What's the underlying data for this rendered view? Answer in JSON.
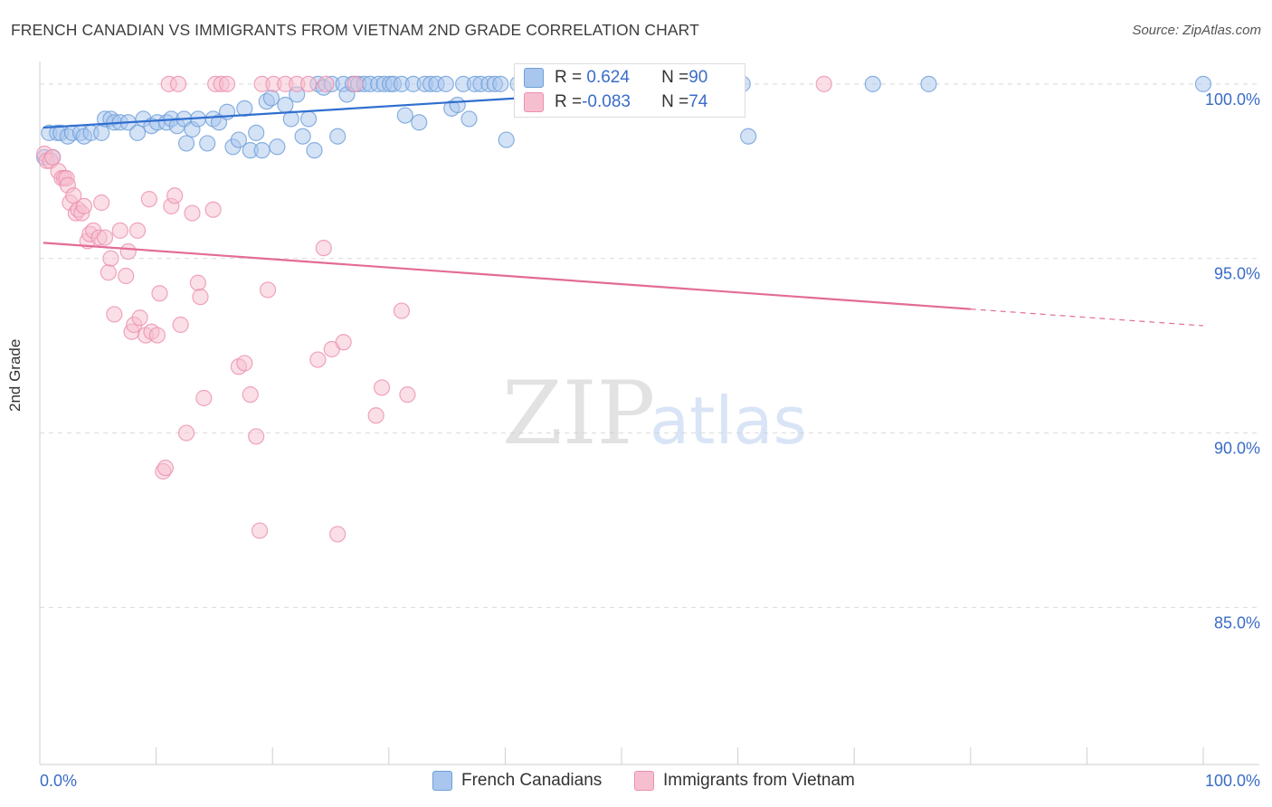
{
  "header": {
    "title": "FRENCH CANADIAN VS IMMIGRANTS FROM VIETNAM 2ND GRADE CORRELATION CHART",
    "source": "Source: ZipAtlas.com"
  },
  "watermark": {
    "zip": "ZIP",
    "atlas": "atlas"
  },
  "colors": {
    "blue_fill": "#a9c6ee",
    "blue_stroke": "#6e9fd8",
    "blue_line": "#2f6fd0",
    "pink_fill": "#f6bfd0",
    "pink_stroke": "#ec8fae",
    "pink_line": "#e36c96",
    "tick_label": "#3a6cc8",
    "grid": "#d9d9d9"
  },
  "legend_box": {
    "rows": [
      {
        "r_label": "R = ",
        "r_value": " 0.624",
        "n_label": "N = ",
        "n_value": "90"
      },
      {
        "r_label": "R = ",
        "r_value": "-0.083",
        "n_label": "N = ",
        "n_value": "74"
      }
    ]
  },
  "chart_data": {
    "type": "scatter",
    "title": "FRENCH CANADIAN VS IMMIGRANTS FROM VIETNAM 2ND GRADE CORRELATION CHART",
    "xlabel": "",
    "ylabel": "2nd Grade",
    "xlim": [
      0,
      100
    ],
    "ylim": [
      80.5,
      100.8
    ],
    "x_tick_labels": [
      "0.0%",
      "100.0%"
    ],
    "y_ticks": [
      85,
      90,
      95,
      100
    ],
    "y_tick_labels": [
      "85.0%",
      "90.0%",
      "95.0%",
      "100.0%"
    ],
    "grid": true,
    "legend": "bottom",
    "series": [
      {
        "name": "French Canadians",
        "color": "#a9c6ee",
        "R": 0.624,
        "N": 90,
        "trend": {
          "x0": 0.3,
          "y0": 98.75,
          "x1": 43.8,
          "y1": 99.65,
          "dash_to_x": null
        },
        "points": [
          [
            0.4,
            97.9
          ],
          [
            0.8,
            98.6
          ],
          [
            1.1,
            97.9
          ],
          [
            1.5,
            98.6
          ],
          [
            1.8,
            98.6
          ],
          [
            2.4,
            98.5
          ],
          [
            2.8,
            98.6
          ],
          [
            3.5,
            98.6
          ],
          [
            3.8,
            98.5
          ],
          [
            4.4,
            98.6
          ],
          [
            5.3,
            98.6
          ],
          [
            5.6,
            99.0
          ],
          [
            6.1,
            99.0
          ],
          [
            6.4,
            98.9
          ],
          [
            6.9,
            98.9
          ],
          [
            7.6,
            98.9
          ],
          [
            8.4,
            98.6
          ],
          [
            8.9,
            99.0
          ],
          [
            9.6,
            98.8
          ],
          [
            10.1,
            98.9
          ],
          [
            10.9,
            98.9
          ],
          [
            11.3,
            99.0
          ],
          [
            11.8,
            98.8
          ],
          [
            12.4,
            99.0
          ],
          [
            12.6,
            98.3
          ],
          [
            13.1,
            98.7
          ],
          [
            13.6,
            99.0
          ],
          [
            14.4,
            98.3
          ],
          [
            14.9,
            99.0
          ],
          [
            15.4,
            98.9
          ],
          [
            16.1,
            99.2
          ],
          [
            16.6,
            98.2
          ],
          [
            17.1,
            98.4
          ],
          [
            17.6,
            99.3
          ],
          [
            18.1,
            98.1
          ],
          [
            18.6,
            98.6
          ],
          [
            19.1,
            98.1
          ],
          [
            19.5,
            99.5
          ],
          [
            19.9,
            99.6
          ],
          [
            20.4,
            98.2
          ],
          [
            21.1,
            99.4
          ],
          [
            21.6,
            99.0
          ],
          [
            22.1,
            99.7
          ],
          [
            22.6,
            98.5
          ],
          [
            23.1,
            99.0
          ],
          [
            23.6,
            98.1
          ],
          [
            23.9,
            100.0
          ],
          [
            24.4,
            99.9
          ],
          [
            25.1,
            100.0
          ],
          [
            25.6,
            98.5
          ],
          [
            26.1,
            100.0
          ],
          [
            26.4,
            99.7
          ],
          [
            26.9,
            100.0
          ],
          [
            27.4,
            100.0
          ],
          [
            27.9,
            100.0
          ],
          [
            28.4,
            100.0
          ],
          [
            29.1,
            100.0
          ],
          [
            29.6,
            100.0
          ],
          [
            30.1,
            100.0
          ],
          [
            30.4,
            100.0
          ],
          [
            31.1,
            100.0
          ],
          [
            31.4,
            99.1
          ],
          [
            32.1,
            100.0
          ],
          [
            32.6,
            98.9
          ],
          [
            33.1,
            100.0
          ],
          [
            33.6,
            100.0
          ],
          [
            34.1,
            100.0
          ],
          [
            34.9,
            100.0
          ],
          [
            35.4,
            99.3
          ],
          [
            35.9,
            99.4
          ],
          [
            36.4,
            100.0
          ],
          [
            36.9,
            99.0
          ],
          [
            37.4,
            100.0
          ],
          [
            37.9,
            100.0
          ],
          [
            38.6,
            100.0
          ],
          [
            39.1,
            100.0
          ],
          [
            39.6,
            100.0
          ],
          [
            40.1,
            98.4
          ],
          [
            41.1,
            100.0
          ],
          [
            41.6,
            100.0
          ],
          [
            42.6,
            100.0
          ],
          [
            43.6,
            100.0
          ],
          [
            48.9,
            100.0
          ],
          [
            49.4,
            100.0
          ],
          [
            54.4,
            100.0
          ],
          [
            55.1,
            100.0
          ],
          [
            60.4,
            100.0
          ],
          [
            60.9,
            98.5
          ],
          [
            71.6,
            100.0
          ],
          [
            76.4,
            100.0
          ],
          [
            100.0,
            100.0
          ]
        ]
      },
      {
        "name": "Immigrants from Vietnam",
        "color": "#f6bfd0",
        "R": -0.083,
        "N": 74,
        "trend": {
          "x0": 0.3,
          "y0": 95.45,
          "x1": 80.0,
          "y1": 93.55,
          "dash_to_x": 100.0
        },
        "points": [
          [
            0.4,
            98.0
          ],
          [
            0.6,
            97.8
          ],
          [
            0.9,
            97.8
          ],
          [
            1.1,
            97.9
          ],
          [
            1.6,
            97.5
          ],
          [
            1.9,
            97.3
          ],
          [
            2.1,
            97.3
          ],
          [
            2.3,
            97.3
          ],
          [
            2.4,
            97.1
          ],
          [
            2.6,
            96.6
          ],
          [
            2.9,
            96.8
          ],
          [
            3.1,
            96.3
          ],
          [
            3.3,
            96.4
          ],
          [
            3.6,
            96.3
          ],
          [
            3.8,
            96.5
          ],
          [
            4.1,
            95.5
          ],
          [
            4.3,
            95.7
          ],
          [
            4.6,
            95.8
          ],
          [
            5.1,
            95.6
          ],
          [
            5.3,
            96.6
          ],
          [
            5.6,
            95.6
          ],
          [
            5.9,
            94.6
          ],
          [
            6.1,
            95.0
          ],
          [
            6.4,
            93.4
          ],
          [
            6.9,
            95.8
          ],
          [
            7.4,
            94.5
          ],
          [
            7.6,
            95.2
          ],
          [
            7.9,
            92.9
          ],
          [
            8.1,
            93.1
          ],
          [
            8.4,
            95.8
          ],
          [
            8.6,
            93.3
          ],
          [
            9.1,
            92.8
          ],
          [
            9.4,
            96.7
          ],
          [
            9.6,
            92.9
          ],
          [
            10.1,
            92.8
          ],
          [
            10.3,
            94.0
          ],
          [
            10.6,
            88.9
          ],
          [
            10.8,
            89.0
          ],
          [
            11.1,
            100.0
          ],
          [
            11.3,
            96.5
          ],
          [
            11.6,
            96.8
          ],
          [
            11.9,
            100.0
          ],
          [
            12.1,
            93.1
          ],
          [
            12.6,
            90.0
          ],
          [
            13.1,
            96.3
          ],
          [
            13.6,
            94.3
          ],
          [
            13.8,
            93.9
          ],
          [
            14.1,
            91.0
          ],
          [
            14.9,
            96.4
          ],
          [
            15.1,
            100.0
          ],
          [
            15.6,
            100.0
          ],
          [
            16.1,
            100.0
          ],
          [
            17.1,
            91.9
          ],
          [
            17.6,
            92.0
          ],
          [
            18.1,
            91.1
          ],
          [
            18.6,
            89.9
          ],
          [
            18.9,
            87.2
          ],
          [
            19.1,
            100.0
          ],
          [
            19.6,
            94.1
          ],
          [
            20.1,
            100.0
          ],
          [
            21.1,
            100.0
          ],
          [
            22.1,
            100.0
          ],
          [
            23.1,
            100.0
          ],
          [
            23.9,
            92.1
          ],
          [
            24.4,
            95.3
          ],
          [
            24.6,
            100.0
          ],
          [
            25.1,
            92.4
          ],
          [
            25.6,
            87.1
          ],
          [
            26.1,
            92.6
          ],
          [
            27.1,
            100.0
          ],
          [
            28.9,
            90.5
          ],
          [
            29.4,
            91.3
          ],
          [
            31.1,
            93.5
          ],
          [
            31.6,
            91.1
          ],
          [
            67.4,
            100.0
          ]
        ]
      }
    ]
  }
}
